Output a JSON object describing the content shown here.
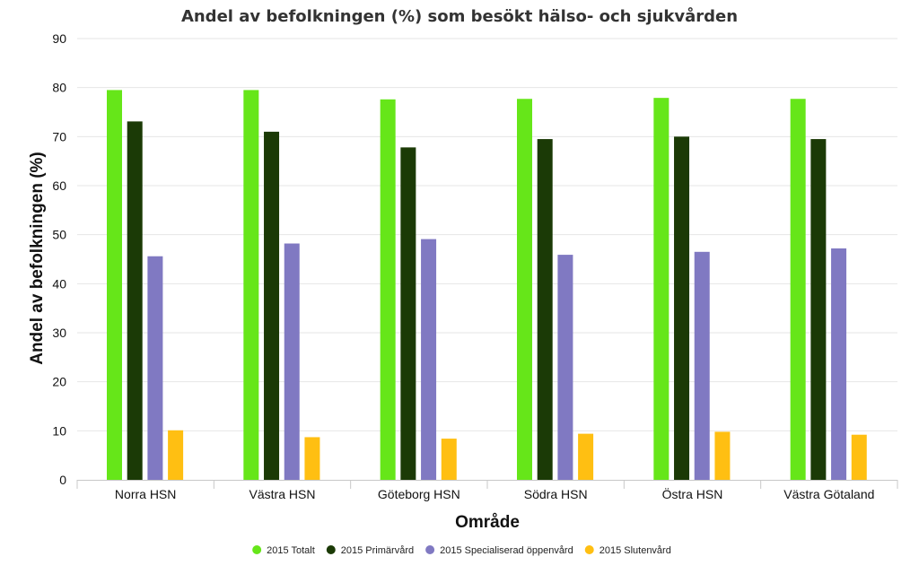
{
  "chart_data": {
    "type": "bar",
    "title": "Andel av befolkningen (%) som besökt hälso- och sjukvården",
    "xlabel": "Område",
    "ylabel": "Andel av befolkningen (%)",
    "ylim": [
      0,
      90
    ],
    "yticks": [
      0,
      10,
      20,
      30,
      40,
      50,
      60,
      70,
      80,
      90
    ],
    "grid": true,
    "legend_position": "bottom",
    "categories": [
      "Norra HSN",
      "Västra HSN",
      "Göteborg HSN",
      "Södra HSN",
      "Östra HSN",
      "Västra Götaland"
    ],
    "series": [
      {
        "name": "2015 Totalt",
        "color": "#66e619",
        "values": [
          79.5,
          79.5,
          77.6,
          77.7,
          77.9,
          77.7
        ]
      },
      {
        "name": "2015 Primärvård",
        "color": "#1b3a06",
        "values": [
          73.1,
          71.0,
          67.8,
          69.5,
          70.0,
          69.5
        ]
      },
      {
        "name": "2015 Specialiserad öppenvård",
        "color": "#8079c2",
        "values": [
          45.6,
          48.2,
          49.1,
          45.9,
          46.5,
          47.2
        ]
      },
      {
        "name": "2015 Slutenvård",
        "color": "#ffbf12",
        "values": [
          10.1,
          8.7,
          8.4,
          9.4,
          9.8,
          9.2
        ]
      }
    ]
  }
}
